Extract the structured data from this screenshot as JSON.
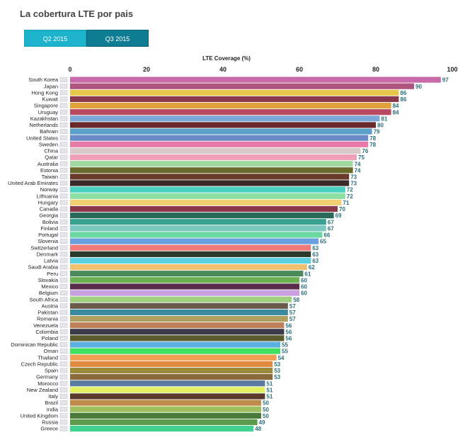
{
  "page": {
    "title": "La cobertura LTE por pais"
  },
  "tabs": [
    {
      "label": "Q2 2015",
      "active": false
    },
    {
      "label": "Q3 2015",
      "active": true
    }
  ],
  "chart_data": {
    "type": "bar",
    "orientation": "horizontal",
    "title": "LTE Coverage (%)",
    "xlabel": "LTE Coverage (%)",
    "ylabel": "",
    "xlim": [
      0,
      100
    ],
    "ticks": [
      0,
      20,
      40,
      60,
      80,
      100
    ],
    "grid": false,
    "legend": "none",
    "categories": [
      "South Korea",
      "Japan",
      "Hong Kong",
      "Kuwait",
      "Singapore",
      "Uruguay",
      "Kazakhstan",
      "Netherlands",
      "Bahrain",
      "United States",
      "Sweden",
      "China",
      "Qatar",
      "Australia",
      "Estonia",
      "Taiwan",
      "United Arab Emirates",
      "Norway",
      "Lithuania",
      "Hungary",
      "Canada",
      "Georgia",
      "Bolivia",
      "Finland",
      "Portugal",
      "Slovenia",
      "Switzerland",
      "Denmark",
      "Latvia",
      "Saudi Arabia",
      "Peru",
      "Slovakia",
      "Mexico",
      "Belgium",
      "South Africa",
      "Austria",
      "Pakistan",
      "Romania",
      "Venezuela",
      "Colombia",
      "Poland",
      "Dominican Republic",
      "Oman",
      "Thailand",
      "Czech Republic",
      "Spain",
      "Germany",
      "Morocco",
      "New Zealand",
      "Italy",
      "Brazil",
      "India",
      "United Kingdom",
      "Russia",
      "Greece"
    ],
    "values": [
      97,
      90,
      86,
      86,
      84,
      84,
      81,
      80,
      79,
      78,
      78,
      76,
      75,
      74,
      74,
      73,
      73,
      72,
      72,
      71,
      70,
      69,
      67,
      67,
      66,
      65,
      63,
      63,
      63,
      62,
      61,
      60,
      60,
      60,
      58,
      57,
      57,
      57,
      56,
      56,
      56,
      55,
      55,
      54,
      53,
      53,
      53,
      51,
      51,
      51,
      50,
      50,
      50,
      49,
      48
    ],
    "colors": [
      "#c86aa9",
      "#b0557f",
      "#e8c84a",
      "#8a3a4a",
      "#e0a03a",
      "#b94a62",
      "#7aa8d8",
      "#6a2a2a",
      "#5aa0c8",
      "#6a8ac8",
      "#e87aa8",
      "#d8c8c8",
      "#f0a0b8",
      "#a0d8a0",
      "#6a6a2a",
      "#6a3a2a",
      "#3a2a2a",
      "#4ad0c0",
      "#8ae0a0",
      "#f0d070",
      "#8a3a4a",
      "#2a6a5a",
      "#3aa090",
      "#7ac8c0",
      "#6ad8a0",
      "#6aa0e0",
      "#f07a7a",
      "#2a3a2a",
      "#5ad0e0",
      "#f0c070",
      "#4a8a5a",
      "#6ab050",
      "#5a2a4a",
      "#c8a0e0",
      "#a0d080",
      "#6a5a4a",
      "#3a8aa0",
      "#b0a060",
      "#c0805a",
      "#3a3a4a",
      "#5a5a2a",
      "#5ab0e0",
      "#40e060",
      "#f0a050",
      "#e08a40",
      "#9a8a3a",
      "#8a6a3a",
      "#5a7aa0",
      "#e0f060",
      "#5a3a2a",
      "#c08a4a",
      "#a0c060",
      "#4a7a3a",
      "#5a9a4a",
      "#40d090"
    ]
  }
}
